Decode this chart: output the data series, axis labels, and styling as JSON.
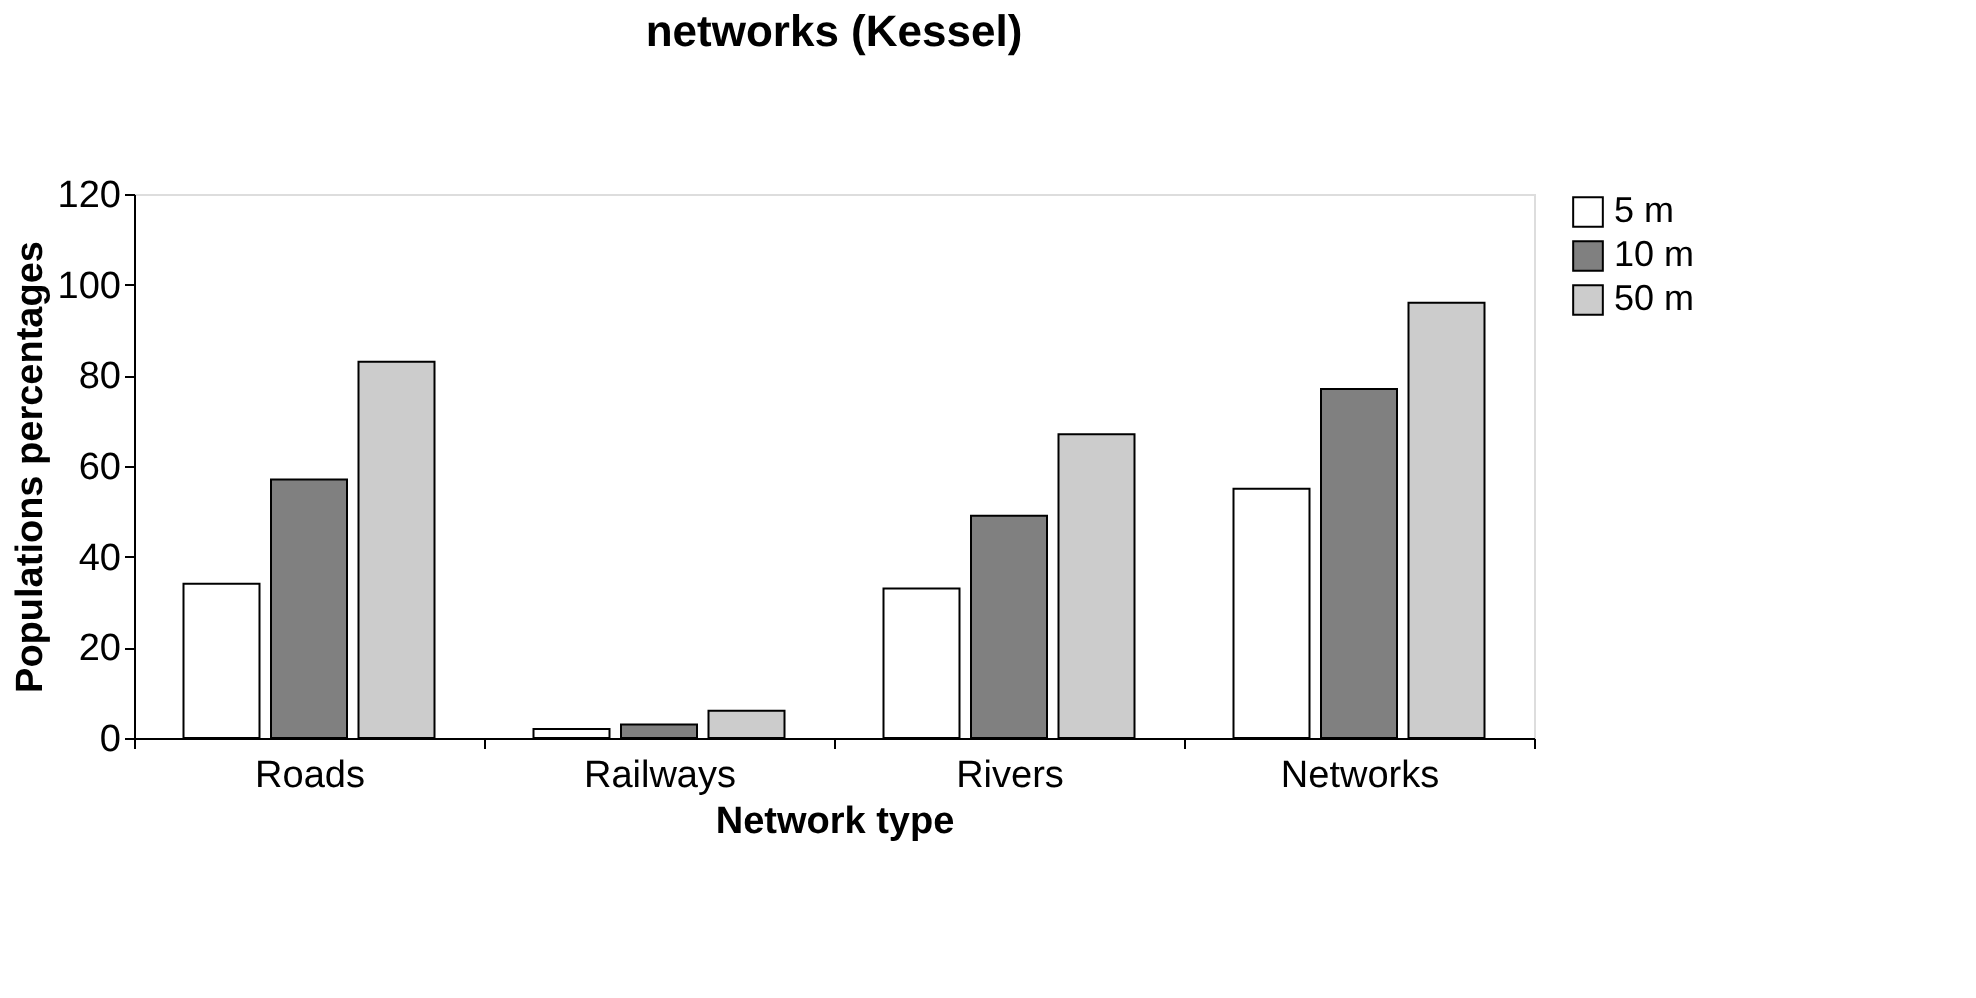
{
  "chart_data": {
    "type": "bar",
    "title": "networks  (Kessel)",
    "xlabel": "Network type",
    "ylabel": "Populations percentages",
    "categories": [
      "Roads",
      "Railways",
      "Rivers",
      "Networks"
    ],
    "series": [
      {
        "name": "5 m",
        "color": "#ffffff",
        "values": [
          34,
          2,
          33,
          55
        ]
      },
      {
        "name": "10 m",
        "color": "#808080",
        "values": [
          57,
          3,
          49,
          77
        ]
      },
      {
        "name": "50 m",
        "color": "#cccccc",
        "values": [
          83,
          6,
          67,
          96
        ]
      }
    ],
    "ylim": [
      0,
      120
    ],
    "yticks": [
      0,
      20,
      40,
      60,
      80,
      100,
      120
    ],
    "grid": false,
    "legend": "right"
  }
}
